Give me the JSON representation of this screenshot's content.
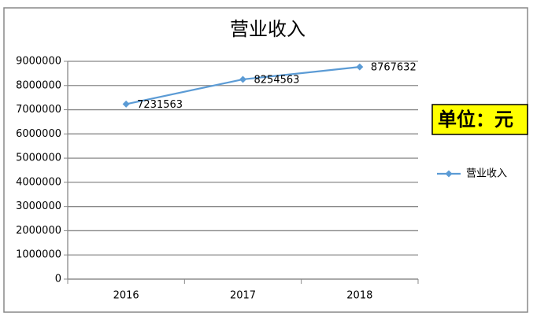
{
  "chart_data": {
    "type": "line",
    "title": "营业收入",
    "categories": [
      "2016",
      "2017",
      "2018"
    ],
    "series": [
      {
        "name": "营业收入",
        "color": "#5b9bd5",
        "values": [
          7231563,
          8254563,
          8767632
        ]
      }
    ],
    "ylim": [
      0,
      9000000
    ],
    "yticks": [
      0,
      1000000,
      2000000,
      3000000,
      4000000,
      5000000,
      6000000,
      7000000,
      8000000,
      9000000
    ],
    "grid": true,
    "legend": "right",
    "annotation": "单位：元"
  }
}
